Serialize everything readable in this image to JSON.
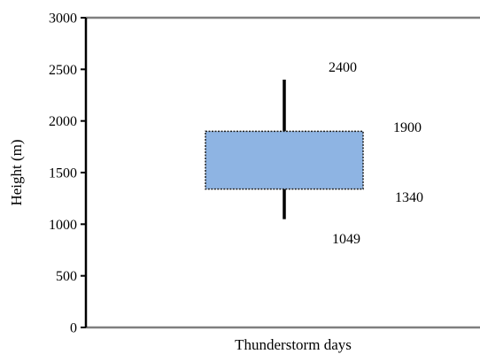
{
  "chart_data": {
    "type": "box",
    "ylabel": "Height (m)",
    "xlabel": "Thunderstorm days",
    "ylim": [
      0,
      3000
    ],
    "yticks": [
      0,
      500,
      1000,
      1500,
      2000,
      2500,
      3000
    ],
    "ytick_labels": [
      "0",
      "500",
      "1000",
      "1500",
      "2000",
      "2500",
      "3000"
    ],
    "grid": false,
    "box": {
      "min": 1049,
      "q1": 1340,
      "q3": 1900,
      "max": 2400,
      "fill_color": "#8eb4e3",
      "edge_color": "#1f1f1f"
    },
    "value_labels": {
      "max": "2400",
      "q3": "1900",
      "q1": "1340",
      "min": "1049"
    }
  }
}
